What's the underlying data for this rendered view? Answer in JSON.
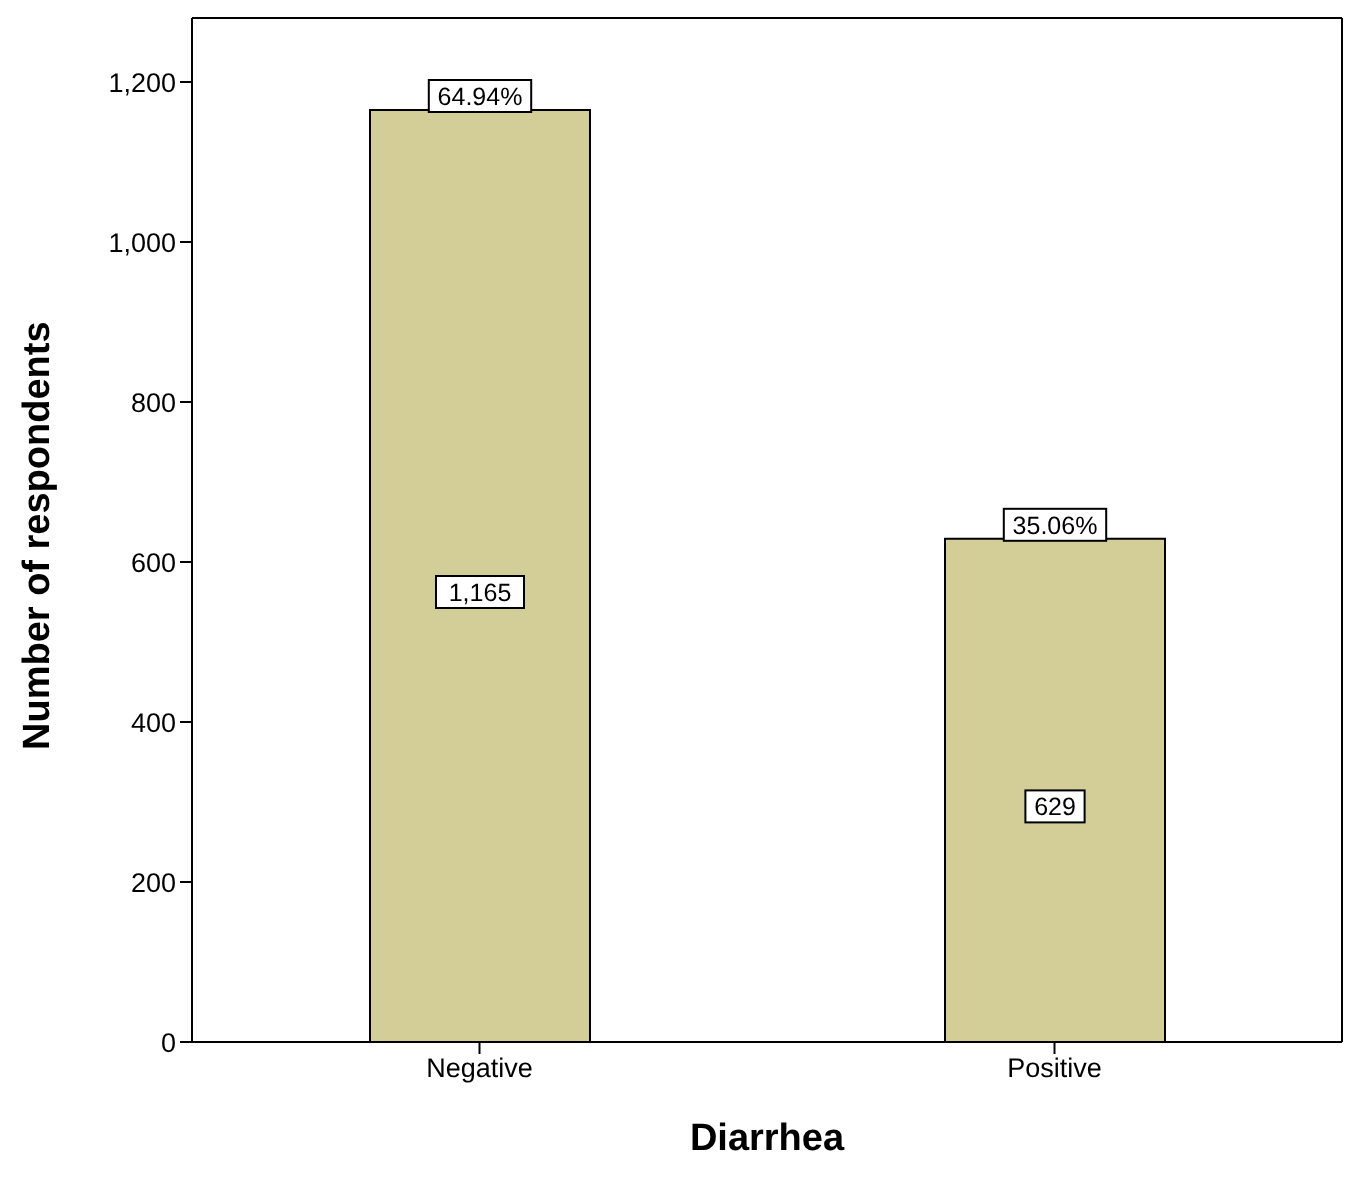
{
  "chart_data": {
    "type": "bar",
    "xlabel": "Diarrhea",
    "ylabel": "Number of respondents",
    "categories": [
      "Negative",
      "Positive"
    ],
    "values": [
      1165,
      629
    ],
    "value_labels": [
      "1,165",
      "629"
    ],
    "color": "#d3ce98",
    "ylim": [
      0,
      1280
    ],
    "yticks": [
      0,
      200,
      400,
      600,
      800,
      {
        "value": 1000,
        "label": "1,000"
      },
      {
        "value": 1200,
        "label": "1,200"
      }
    ],
    "annotations": [
      {
        "text": "64.94%",
        "x": "Negative",
        "y": 1165
      },
      {
        "text": "35.06%",
        "x": "Positive",
        "y": 629
      }
    ],
    "grid": false,
    "legend": false
  }
}
